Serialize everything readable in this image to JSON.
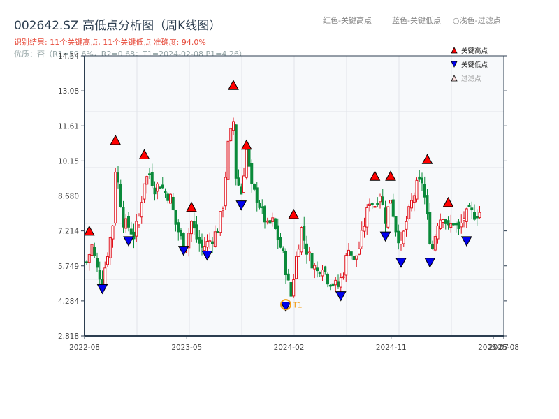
{
  "header": {
    "title": "002642.SZ 高低点分析图（周K线图）",
    "result": "识别结果: 11个关键高点, 11个关键低点   准确度: 94.0%",
    "quality": "优质：否（R1=50.6%，R2=0.68；T1=2024-02-08 P1=4.26）",
    "legend_red": "红色-关键高点",
    "legend_blue": "蓝色-关键低点",
    "legend_light": "○浅色-过滤点"
  },
  "colors": {
    "up": "#e0141e",
    "down": "#0a8a3a",
    "high_marker": "#ff0000",
    "low_marker": "#0000ee",
    "t1": "#f39c12",
    "axis": "#2c3e50",
    "grid": "#e1e4e8",
    "plot_bg": "#f7f9fb"
  },
  "chart_data": {
    "type": "candlestick",
    "title": "002642.SZ 高低点分析图（周K线图）",
    "ylim": [
      2.818,
      14.54
    ],
    "yticks": [
      "14.54",
      "13.08",
      "11.61",
      "10.15",
      "8.680",
      "7.214",
      "5.749",
      "4.284",
      "2.818"
    ],
    "ytick_values": [
      14.54,
      13.08,
      11.61,
      10.15,
      8.68,
      7.214,
      5.749,
      4.284,
      2.818
    ],
    "xticks": [
      "2022-08",
      "2023-05",
      "2024-02",
      "2024-11",
      "2025-07",
      "2025-08"
    ],
    "xtick_weeks": [
      0,
      39,
      78,
      117,
      156,
      160
    ],
    "legend": [
      "关键高点",
      "关键低点",
      "过滤点"
    ],
    "legend_position": "upper right",
    "grid": true,
    "weekly_close_path": [
      [
        0,
        5.9
      ],
      [
        2,
        6.6
      ],
      [
        4,
        5.6
      ],
      [
        6,
        5.1
      ],
      [
        8,
        6.3
      ],
      [
        10,
        7.5
      ],
      [
        11,
        9.8
      ],
      [
        12,
        9.2
      ],
      [
        14,
        7.6
      ],
      [
        16,
        7.4
      ],
      [
        18,
        7.0
      ],
      [
        20,
        7.8
      ],
      [
        22,
        9.3
      ],
      [
        24,
        9.6
      ],
      [
        26,
        9.0
      ],
      [
        28,
        9.2
      ],
      [
        30,
        8.8
      ],
      [
        32,
        8.6
      ],
      [
        34,
        7.5
      ],
      [
        36,
        6.9
      ],
      [
        38,
        6.7
      ],
      [
        40,
        7.6
      ],
      [
        42,
        6.9
      ],
      [
        44,
        6.5
      ],
      [
        46,
        6.7
      ],
      [
        48,
        6.9
      ],
      [
        50,
        7.3
      ],
      [
        52,
        8.3
      ],
      [
        54,
        10.8
      ],
      [
        56,
        11.8
      ],
      [
        57,
        9.5
      ],
      [
        59,
        8.8
      ],
      [
        61,
        10.6
      ],
      [
        63,
        9.0
      ],
      [
        65,
        8.6
      ],
      [
        67,
        8.0
      ],
      [
        69,
        7.4
      ],
      [
        71,
        7.6
      ],
      [
        73,
        6.9
      ],
      [
        75,
        6.2
      ],
      [
        77,
        5.0
      ],
      [
        78,
        4.5
      ],
      [
        80,
        6.1
      ],
      [
        82,
        7.3
      ],
      [
        84,
        6.4
      ],
      [
        86,
        5.9
      ],
      [
        88,
        5.5
      ],
      [
        90,
        5.8
      ],
      [
        92,
        5.2
      ],
      [
        94,
        5.0
      ],
      [
        96,
        4.9
      ],
      [
        98,
        5.5
      ],
      [
        100,
        6.6
      ],
      [
        102,
        5.9
      ],
      [
        104,
        6.5
      ],
      [
        106,
        7.5
      ],
      [
        108,
        8.5
      ],
      [
        110,
        8.3
      ],
      [
        112,
        8.8
      ],
      [
        114,
        7.7
      ],
      [
        116,
        8.6
      ],
      [
        118,
        7.3
      ],
      [
        120,
        6.6
      ],
      [
        122,
        7.6
      ],
      [
        124,
        8.4
      ],
      [
        126,
        9.1
      ],
      [
        128,
        9.3
      ],
      [
        129,
        8.6
      ],
      [
        131,
        6.9
      ],
      [
        132,
        6.5
      ],
      [
        134,
        7.6
      ],
      [
        136,
        7.9
      ],
      [
        138,
        7.3
      ],
      [
        140,
        7.6
      ],
      [
        142,
        7.2
      ],
      [
        144,
        7.8
      ],
      [
        146,
        8.0
      ],
      [
        148,
        7.9
      ],
      [
        150,
        8.0
      ]
    ],
    "key_highs": [
      {
        "week": 1,
        "price": 7.0
      },
      {
        "week": 11,
        "price": 10.8
      },
      {
        "week": 22,
        "price": 10.2
      },
      {
        "week": 40,
        "price": 8.0
      },
      {
        "week": 56,
        "price": 13.1
      },
      {
        "week": 61,
        "price": 10.6
      },
      {
        "week": 79,
        "price": 7.7
      },
      {
        "week": 110,
        "price": 9.3
      },
      {
        "week": 116,
        "price": 9.3
      },
      {
        "week": 130,
        "price": 10.0
      },
      {
        "week": 138,
        "price": 8.2
      }
    ],
    "key_lows": [
      {
        "week": 6,
        "price": 5.0
      },
      {
        "week": 16,
        "price": 7.0
      },
      {
        "week": 37,
        "price": 6.6
      },
      {
        "week": 46,
        "price": 6.4
      },
      {
        "week": 59,
        "price": 8.5
      },
      {
        "week": 76,
        "price": 4.26
      },
      {
        "week": 97,
        "price": 4.7
      },
      {
        "week": 114,
        "price": 7.2
      },
      {
        "week": 120,
        "price": 6.1
      },
      {
        "week": 131,
        "price": 6.1
      },
      {
        "week": 145,
        "price": 7.0
      }
    ],
    "annotations": [
      {
        "label": "T1",
        "week": 76,
        "price": 4.26,
        "date": "2024-02-08"
      }
    ]
  }
}
